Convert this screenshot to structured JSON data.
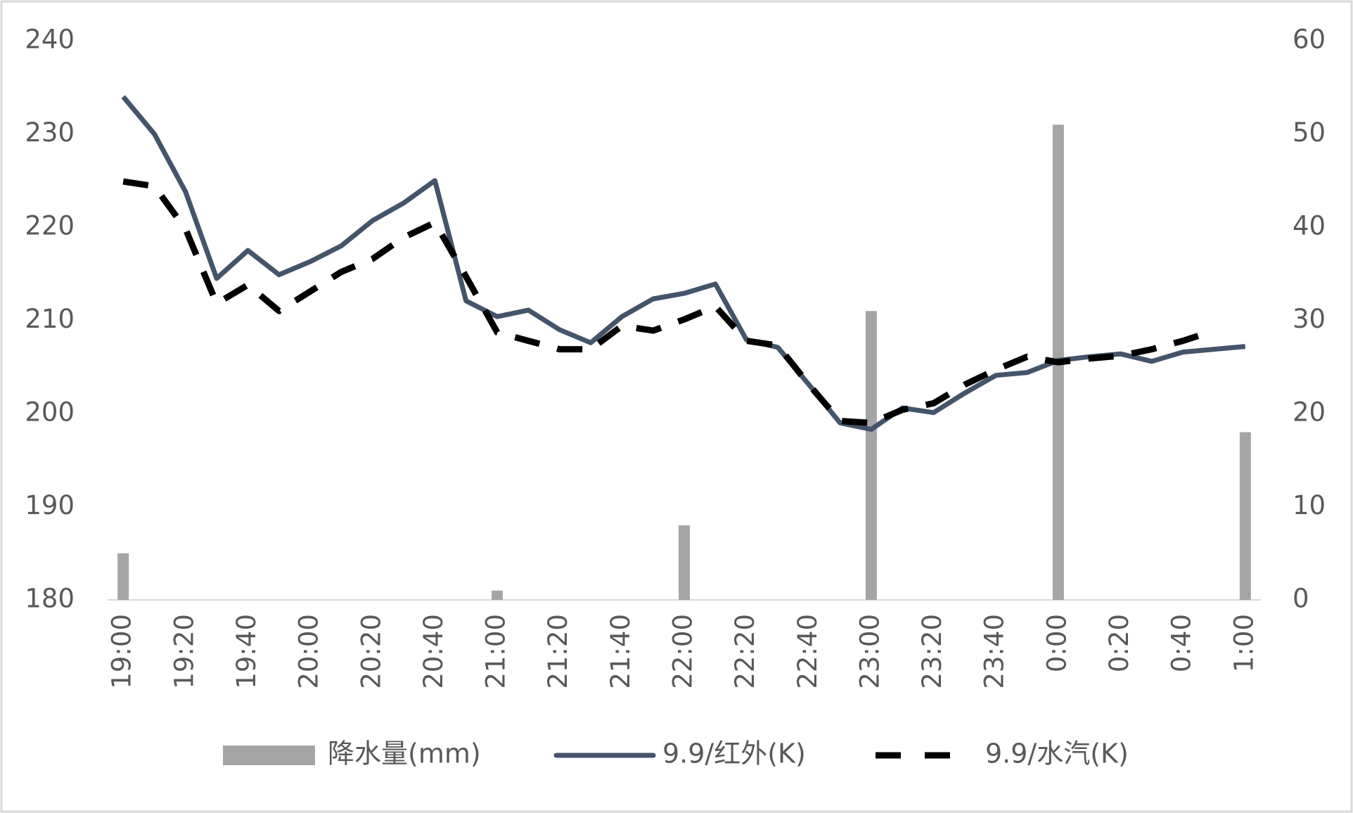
{
  "chart_data": {
    "type": "bar_line",
    "categories": [
      "19:00",
      null,
      "19:20",
      null,
      "19:40",
      null,
      "20:00",
      null,
      "20:20",
      null,
      "20:40",
      null,
      "21:00",
      null,
      "21:20",
      null,
      "21:40",
      null,
      "22:00",
      null,
      "22:20",
      null,
      "22:40",
      null,
      "23:00",
      null,
      "23:20",
      null,
      "23:40",
      null,
      "0:00",
      null,
      "0:20",
      null,
      "0:40",
      null,
      "1:00"
    ],
    "ylim": [
      180,
      240
    ],
    "yticks": [
      180,
      190,
      200,
      210,
      220,
      230,
      240
    ],
    "y2lim": [
      0,
      60
    ],
    "y2ticks": [
      0,
      10,
      20,
      30,
      40,
      50,
      60
    ],
    "series": [
      {
        "name": "降水量(mm)",
        "type": "bar",
        "axis": "y2",
        "color": "#a5a5a5",
        "values": [
          5,
          null,
          null,
          null,
          null,
          null,
          null,
          null,
          null,
          null,
          null,
          null,
          1,
          null,
          null,
          null,
          null,
          null,
          8,
          null,
          null,
          null,
          null,
          null,
          31,
          null,
          null,
          null,
          null,
          null,
          51,
          null,
          null,
          null,
          null,
          null,
          18
        ]
      },
      {
        "name": "9.9/红外(K)",
        "type": "line",
        "line_style": "solid",
        "color": "#44546a",
        "values": [
          234.0,
          230.0,
          223.8,
          214.5,
          217.5,
          214.9,
          216.3,
          218.0,
          220.7,
          222.6,
          225.0,
          212.1,
          210.4,
          211.1,
          209.0,
          207.6,
          210.4,
          212.3,
          212.9,
          213.9,
          207.9,
          207.1,
          203.1,
          199.0,
          198.3,
          200.6,
          200.1,
          202.2,
          204.1,
          204.4,
          205.7,
          206.1,
          206.4,
          205.6,
          206.6,
          206.9,
          207.2
        ]
      },
      {
        "name": "9.9/水汽(K)",
        "type": "line",
        "line_style": "dashed",
        "color": "#000000",
        "values": [
          224.9,
          224.4,
          219.8,
          211.8,
          213.8,
          211.0,
          213.1,
          215.2,
          216.6,
          218.9,
          220.5,
          214.7,
          208.7,
          207.8,
          206.9,
          206.9,
          209.4,
          208.9,
          210.1,
          211.5,
          207.8,
          207.3,
          203.1,
          199.2,
          199.0,
          200.4,
          201.1,
          203.1,
          204.7,
          206.1,
          205.5,
          205.9,
          206.2,
          206.9,
          207.8,
          208.9,
          null
        ]
      }
    ]
  }
}
